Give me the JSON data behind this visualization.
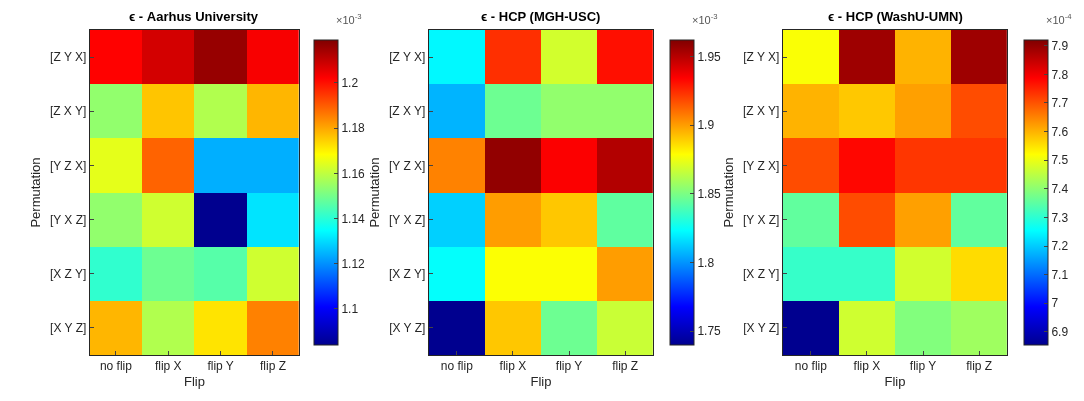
{
  "chart_data": [
    {
      "type": "heatmap",
      "title": "ϵ - Aarhus University",
      "xlabel": "Flip",
      "ylabel": "Permutation",
      "clabel": "×10$^{-3}$",
      "categories": [
        "no flip",
        "flip X",
        "flip Y",
        "flip Z"
      ],
      "y_categories": [
        "[Z Y X]",
        "[Z X Y]",
        "[Y Z X]",
        "[Y X Z]",
        "[X Z Y]",
        "[X Y Z]"
      ],
      "cells": [
        [
          1.202,
          1.208,
          1.216,
          1.203
        ],
        [
          1.154,
          1.176,
          1.158,
          1.178
        ],
        [
          1.165,
          1.189,
          1.124,
          1.124
        ],
        [
          1.154,
          1.162,
          1.084,
          1.131
        ],
        [
          1.141,
          1.149,
          1.146,
          1.162
        ],
        [
          1.178,
          1.158,
          1.172,
          1.185
        ]
      ],
      "clim": [
        1.084,
        1.219
      ],
      "cticks": [
        1.1,
        1.12,
        1.14,
        1.16,
        1.18,
        1.2
      ]
    },
    {
      "type": "heatmap",
      "title": "ϵ - HCP (MGH-USC)",
      "xlabel": "Flip",
      "ylabel": "Permutation",
      "clabel": "×10$^{-3}$",
      "categories": [
        "no flip",
        "flip X",
        "flip Y",
        "flip Z"
      ],
      "y_categories": [
        "[Z Y X]",
        "[Z X Y]",
        "[Y Z X]",
        "[Y X Z]",
        "[X Z Y]",
        "[X Y Z]"
      ],
      "cells": [
        [
          1.822,
          1.924,
          1.869,
          1.931
        ],
        [
          1.807,
          1.847,
          1.855,
          1.855
        ],
        [
          1.906,
          1.958,
          1.935,
          1.951
        ],
        [
          1.813,
          1.9,
          1.891,
          1.844
        ],
        [
          1.824,
          1.878,
          1.878,
          1.9
        ],
        [
          1.74,
          1.891,
          1.847,
          1.867
        ]
      ],
      "clim": [
        1.74,
        1.962
      ],
      "cticks": [
        1.75,
        1.8,
        1.85,
        1.9,
        1.95
      ]
    },
    {
      "type": "heatmap",
      "title": "ϵ - HCP (WashU-UMN)",
      "xlabel": "Flip",
      "ylabel": "Permutation",
      "clabel": "×10$^{-4}$",
      "categories": [
        "no flip",
        "flip X",
        "flip Y",
        "flip Z"
      ],
      "y_categories": [
        "[Z Y X]",
        "[Z X Y]",
        "[Y Z X]",
        "[Y X Z]",
        "[X Z Y]",
        "[X Y Z]"
      ],
      "cells": [
        [
          7.515,
          7.888,
          7.6,
          7.888
        ],
        [
          7.6,
          7.578,
          7.62,
          7.707
        ],
        [
          7.707,
          7.78,
          7.73,
          7.73
        ],
        [
          7.355,
          7.707,
          7.62,
          7.355
        ],
        [
          7.31,
          7.31,
          7.472,
          7.557
        ],
        [
          6.854,
          7.47,
          7.39,
          7.42
        ]
      ],
      "clim": [
        6.854,
        7.92
      ],
      "cticks": [
        6.9,
        7,
        7.1,
        7.2,
        7.3,
        7.4,
        7.5,
        7.6,
        7.7,
        7.8,
        7.9
      ]
    }
  ]
}
